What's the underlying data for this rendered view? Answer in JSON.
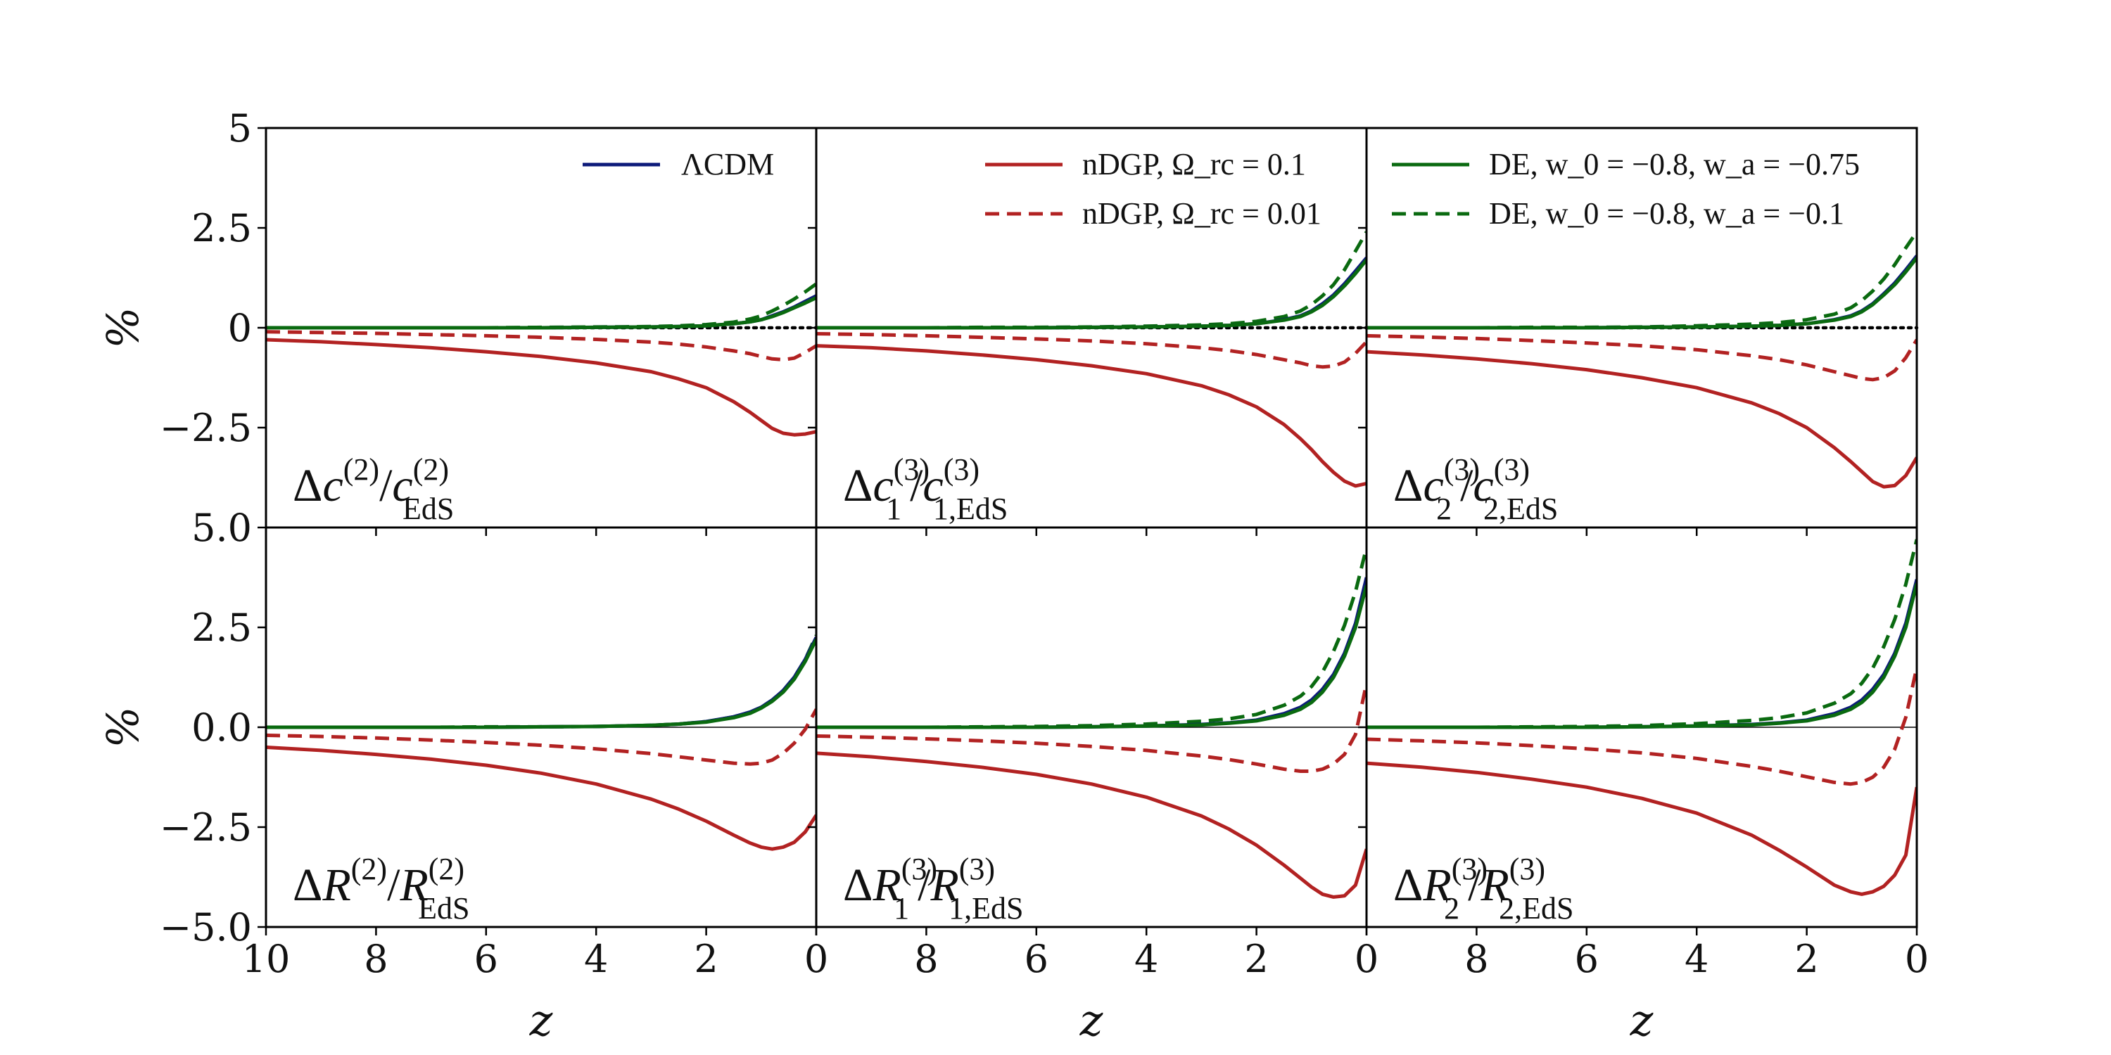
{
  "chart_data": {
    "type": "line",
    "grid": false,
    "colors": {
      "lcdm": "#0d1a7a",
      "ndgp": "#b22222",
      "de": "#0a6a10"
    },
    "legend": [
      {
        "text": "ΛCDM",
        "color": "#0d1a7a",
        "dash": false,
        "panel": 0
      },
      {
        "text": "nDGP, Ω_rc = 0.1",
        "color": "#b22222",
        "dash": false,
        "panel": 1
      },
      {
        "text": "nDGP, Ω_rc = 0.01",
        "color": "#b22222",
        "dash": true,
        "panel": 1
      },
      {
        "text": "DE, w_0 = −0.8, w_a = −0.75",
        "color": "#0a6a10",
        "dash": false,
        "panel": 2
      },
      {
        "text": "DE, w_0 = −0.8, w_a = −0.1",
        "color": "#0a6a10",
        "dash": true,
        "panel": 2
      }
    ],
    "xlabel": "z",
    "ylabel": "%",
    "xlim": [
      10,
      0
    ],
    "x_ticks": [
      10,
      8,
      6,
      4,
      2,
      0
    ],
    "x_tick_labels": [
      "10",
      "8",
      "6",
      "4",
      "2",
      "0"
    ],
    "z": [
      10,
      9,
      8,
      7,
      6,
      5,
      4,
      3,
      2.5,
      2,
      1.5,
      1.2,
      1.0,
      0.8,
      0.6,
      0.4,
      0.2,
      0
    ],
    "rows": [
      {
        "ylim": [
          -5,
          5
        ],
        "y_ticks": [
          5,
          2.5,
          0,
          -2.5
        ],
        "y_tick_labels": [
          "5",
          "2.5",
          "0",
          "−2.5"
        ],
        "zero_line": "dotted"
      },
      {
        "ylim": [
          -5,
          5
        ],
        "y_ticks": [
          5,
          2.5,
          0,
          -2.5,
          -5
        ],
        "y_tick_labels": [
          "5.0",
          "2.5",
          "0.0",
          "−2.5",
          "−5.0"
        ],
        "zero_line": "thin"
      }
    ],
    "panels": [
      {
        "label": {
          "base": "c",
          "sup": "(2)",
          "sub": "",
          "dsub": "EdS",
          "dsup": "(2)"
        },
        "series": [
          {
            "key": "lcdm",
            "name": "ΛCDM",
            "dash": false,
            "values": [
              0,
              0,
              0,
              0,
              0,
              0,
              0.01,
              0.02,
              0.03,
              0.05,
              0.1,
              0.15,
              0.2,
              0.3,
              0.4,
              0.52,
              0.66,
              0.8
            ]
          },
          {
            "key": "ndgp",
            "name": "nDGP, Ω_rc = 0.1",
            "dash": false,
            "values": [
              -0.3,
              -0.35,
              -0.42,
              -0.5,
              -0.6,
              -0.72,
              -0.88,
              -1.1,
              -1.28,
              -1.5,
              -1.85,
              -2.12,
              -2.32,
              -2.52,
              -2.64,
              -2.68,
              -2.66,
              -2.6
            ]
          },
          {
            "key": "ndgp",
            "name": "nDGP, Ω_rc = 0.01",
            "dash": true,
            "values": [
              -0.1,
              -0.12,
              -0.14,
              -0.17,
              -0.2,
              -0.24,
              -0.29,
              -0.36,
              -0.41,
              -0.48,
              -0.58,
              -0.65,
              -0.72,
              -0.78,
              -0.8,
              -0.76,
              -0.62,
              -0.45
            ]
          },
          {
            "key": "de",
            "name": "DE, w_0 = −0.8, w_a = −0.75",
            "dash": false,
            "values": [
              0,
              0,
              0,
              0,
              0,
              0,
              0.01,
              0.02,
              0.03,
              0.05,
              0.1,
              0.15,
              0.2,
              0.28,
              0.38,
              0.5,
              0.62,
              0.75
            ]
          },
          {
            "key": "de",
            "name": "DE, w_0 = −0.8, w_a = −0.1",
            "dash": true,
            "values": [
              0,
              0,
              0,
              0,
              0,
              0.01,
              0.02,
              0.03,
              0.05,
              0.08,
              0.14,
              0.22,
              0.3,
              0.42,
              0.56,
              0.72,
              0.9,
              1.1
            ]
          }
        ]
      },
      {
        "label": {
          "base": "c",
          "sup": "(3)",
          "sub": "1",
          "dsub": "1,EdS",
          "dsup": "(3)"
        },
        "series": [
          {
            "key": "lcdm",
            "name": "ΛCDM",
            "dash": false,
            "values": [
              0,
              0,
              0,
              0,
              0,
              0.01,
              0.02,
              0.04,
              0.06,
              0.1,
              0.2,
              0.3,
              0.42,
              0.6,
              0.82,
              1.1,
              1.42,
              1.75
            ]
          },
          {
            "key": "ndgp",
            "name": "nDGP, Ω_rc = 0.1",
            "dash": false,
            "values": [
              -0.45,
              -0.5,
              -0.58,
              -0.68,
              -0.8,
              -0.95,
              -1.15,
              -1.45,
              -1.68,
              -1.98,
              -2.42,
              -2.78,
              -3.05,
              -3.35,
              -3.62,
              -3.84,
              -3.96,
              -3.9
            ]
          },
          {
            "key": "ndgp",
            "name": "nDGP, Ω_rc = 0.01",
            "dash": true,
            "values": [
              -0.15,
              -0.17,
              -0.2,
              -0.24,
              -0.28,
              -0.33,
              -0.4,
              -0.5,
              -0.57,
              -0.67,
              -0.8,
              -0.88,
              -0.95,
              -0.98,
              -0.96,
              -0.86,
              -0.64,
              -0.35
            ]
          },
          {
            "key": "de",
            "name": "DE, w_0 = −0.8, w_a = −0.75",
            "dash": false,
            "values": [
              0,
              0,
              0,
              0,
              0,
              0.01,
              0.02,
              0.04,
              0.06,
              0.1,
              0.19,
              0.28,
              0.4,
              0.56,
              0.78,
              1.05,
              1.36,
              1.7
            ]
          },
          {
            "key": "de",
            "name": "DE, w_0 = −0.8, w_a = −0.1",
            "dash": true,
            "values": [
              0,
              0,
              0,
              0.01,
              0.01,
              0.02,
              0.04,
              0.07,
              0.1,
              0.16,
              0.28,
              0.42,
              0.58,
              0.8,
              1.08,
              1.45,
              1.92,
              2.4
            ]
          }
        ]
      },
      {
        "label": {
          "base": "c",
          "sup": "(3)",
          "sub": "2",
          "dsub": "2,EdS",
          "dsup": "(3)"
        },
        "series": [
          {
            "key": "lcdm",
            "name": "ΛCDM",
            "dash": false,
            "values": [
              0,
              0,
              0,
              0,
              0,
              0.01,
              0.02,
              0.04,
              0.06,
              0.1,
              0.2,
              0.3,
              0.42,
              0.6,
              0.85,
              1.12,
              1.45,
              1.8
            ]
          },
          {
            "key": "ndgp",
            "name": "nDGP, Ω_rc = 0.1",
            "dash": false,
            "values": [
              -0.6,
              -0.68,
              -0.78,
              -0.9,
              -1.05,
              -1.25,
              -1.5,
              -1.88,
              -2.15,
              -2.5,
              -3.0,
              -3.35,
              -3.6,
              -3.85,
              -3.98,
              -3.95,
              -3.7,
              -3.25
            ]
          },
          {
            "key": "ndgp",
            "name": "nDGP, Ω_rc = 0.01",
            "dash": true,
            "values": [
              -0.2,
              -0.23,
              -0.27,
              -0.32,
              -0.38,
              -0.45,
              -0.55,
              -0.7,
              -0.8,
              -0.93,
              -1.1,
              -1.2,
              -1.27,
              -1.3,
              -1.25,
              -1.08,
              -0.75,
              -0.3
            ]
          },
          {
            "key": "de",
            "name": "DE, w_0 = −0.8, w_a = −0.75",
            "dash": false,
            "values": [
              0,
              0,
              0,
              0,
              0,
              0.01,
              0.02,
              0.04,
              0.06,
              0.1,
              0.19,
              0.28,
              0.4,
              0.58,
              0.82,
              1.08,
              1.4,
              1.75
            ]
          },
          {
            "key": "de",
            "name": "DE, w_0 = −0.8, w_a = −0.1",
            "dash": true,
            "values": [
              0,
              0,
              0,
              0.01,
              0.01,
              0.02,
              0.05,
              0.09,
              0.13,
              0.2,
              0.34,
              0.5,
              0.68,
              0.92,
              1.22,
              1.58,
              2.0,
              2.4
            ]
          }
        ]
      },
      {
        "label": {
          "base": "R",
          "sup": "(2)",
          "sub": "",
          "dsub": "EdS",
          "dsup": "(2)"
        },
        "series": [
          {
            "key": "lcdm",
            "name": "ΛCDM",
            "dash": false,
            "values": [
              0,
              0,
              0,
              0,
              0,
              0.01,
              0.02,
              0.05,
              0.08,
              0.14,
              0.26,
              0.38,
              0.5,
              0.68,
              0.92,
              1.25,
              1.7,
              2.25
            ]
          },
          {
            "key": "ndgp",
            "name": "nDGP, Ω_rc = 0.1",
            "dash": false,
            "values": [
              -0.5,
              -0.58,
              -0.68,
              -0.8,
              -0.95,
              -1.15,
              -1.42,
              -1.8,
              -2.05,
              -2.35,
              -2.7,
              -2.9,
              -3.0,
              -3.05,
              -3.0,
              -2.88,
              -2.62,
              -2.2
            ]
          },
          {
            "key": "ndgp",
            "name": "nDGP, Ω_rc = 0.01",
            "dash": true,
            "values": [
              -0.2,
              -0.23,
              -0.27,
              -0.32,
              -0.38,
              -0.45,
              -0.54,
              -0.66,
              -0.74,
              -0.82,
              -0.9,
              -0.92,
              -0.9,
              -0.82,
              -0.65,
              -0.4,
              -0.05,
              0.45
            ]
          },
          {
            "key": "de",
            "name": "DE, w_0 = −0.8, w_a = −0.75",
            "dash": false,
            "values": [
              0,
              0,
              0,
              0,
              0,
              0.01,
              0.02,
              0.05,
              0.08,
              0.13,
              0.24,
              0.35,
              0.48,
              0.65,
              0.88,
              1.2,
              1.65,
              2.2
            ]
          },
          {
            "key": "de",
            "name": "DE, w_0 = −0.8, w_a = −0.1",
            "dash": true,
            "values": [
              0,
              0,
              0,
              0,
              0.01,
              0.01,
              0.02,
              0.05,
              0.08,
              0.14,
              0.26,
              0.38,
              0.5,
              0.68,
              0.92,
              1.25,
              1.7,
              2.3
            ]
          }
        ]
      },
      {
        "label": {
          "base": "R",
          "sup": "(3)",
          "sub": "1",
          "dsub": "1,EdS",
          "dsup": "(3)"
        },
        "series": [
          {
            "key": "lcdm",
            "name": "ΛCDM",
            "dash": false,
            "values": [
              0,
              0,
              0,
              0,
              0,
              0.01,
              0.03,
              0.07,
              0.11,
              0.18,
              0.34,
              0.5,
              0.68,
              0.95,
              1.32,
              1.85,
              2.6,
              3.75
            ]
          },
          {
            "key": "ndgp",
            "name": "nDGP, Ω_rc = 0.1",
            "dash": false,
            "values": [
              -0.65,
              -0.74,
              -0.86,
              -1.0,
              -1.18,
              -1.42,
              -1.75,
              -2.22,
              -2.55,
              -2.95,
              -3.45,
              -3.78,
              -4.0,
              -4.18,
              -4.25,
              -4.22,
              -3.95,
              -3.05
            ]
          },
          {
            "key": "ndgp",
            "name": "nDGP, Ω_rc = 0.01",
            "dash": true,
            "values": [
              -0.22,
              -0.25,
              -0.29,
              -0.34,
              -0.4,
              -0.48,
              -0.58,
              -0.72,
              -0.81,
              -0.92,
              -1.05,
              -1.1,
              -1.1,
              -1.05,
              -0.92,
              -0.68,
              -0.18,
              1.1
            ]
          },
          {
            "key": "de",
            "name": "DE, w_0 = −0.8, w_a = −0.75",
            "dash": false,
            "values": [
              0,
              0,
              0,
              0,
              0,
              0.01,
              0.03,
              0.06,
              0.1,
              0.16,
              0.3,
              0.45,
              0.62,
              0.88,
              1.25,
              1.78,
              2.5,
              3.55
            ]
          },
          {
            "key": "de",
            "name": "DE, w_0 = −0.8, w_a = −0.1",
            "dash": true,
            "values": [
              0,
              0,
              0,
              0.01,
              0.02,
              0.04,
              0.08,
              0.15,
              0.21,
              0.32,
              0.55,
              0.78,
              1.02,
              1.38,
              1.9,
              2.55,
              3.4,
              4.5
            ]
          }
        ]
      },
      {
        "label": {
          "base": "R",
          "sup": "(3)",
          "sub": "2",
          "dsub": "2,EdS",
          "dsup": "(3)"
        },
        "series": [
          {
            "key": "lcdm",
            "name": "ΛCDM",
            "dash": false,
            "values": [
              0,
              0,
              0,
              0,
              0,
              0.01,
              0.03,
              0.07,
              0.11,
              0.18,
              0.34,
              0.5,
              0.68,
              0.95,
              1.32,
              1.85,
              2.6,
              3.7
            ]
          },
          {
            "key": "ndgp",
            "name": "nDGP, Ω_rc = 0.1",
            "dash": false,
            "values": [
              -0.9,
              -1.0,
              -1.13,
              -1.3,
              -1.5,
              -1.78,
              -2.15,
              -2.7,
              -3.08,
              -3.5,
              -3.95,
              -4.12,
              -4.18,
              -4.12,
              -3.98,
              -3.7,
              -3.2,
              -1.5
            ]
          },
          {
            "key": "ndgp",
            "name": "nDGP, Ω_rc = 0.01",
            "dash": true,
            "values": [
              -0.3,
              -0.34,
              -0.39,
              -0.46,
              -0.54,
              -0.64,
              -0.78,
              -0.98,
              -1.1,
              -1.24,
              -1.38,
              -1.42,
              -1.38,
              -1.25,
              -1.0,
              -0.55,
              0.25,
              1.5
            ]
          },
          {
            "key": "de",
            "name": "DE, w_0 = −0.8, w_a = −0.75",
            "dash": false,
            "values": [
              0,
              0,
              0,
              0,
              0,
              0.01,
              0.03,
              0.06,
              0.1,
              0.16,
              0.3,
              0.45,
              0.62,
              0.88,
              1.25,
              1.78,
              2.5,
              3.6
            ]
          },
          {
            "key": "de",
            "name": "DE, w_0 = −0.8, w_a = −0.1",
            "dash": true,
            "values": [
              0,
              0,
              0,
              0.01,
              0.02,
              0.04,
              0.09,
              0.17,
              0.24,
              0.36,
              0.6,
              0.84,
              1.1,
              1.48,
              2.02,
              2.7,
              3.58,
              4.7
            ]
          }
        ]
      }
    ]
  }
}
